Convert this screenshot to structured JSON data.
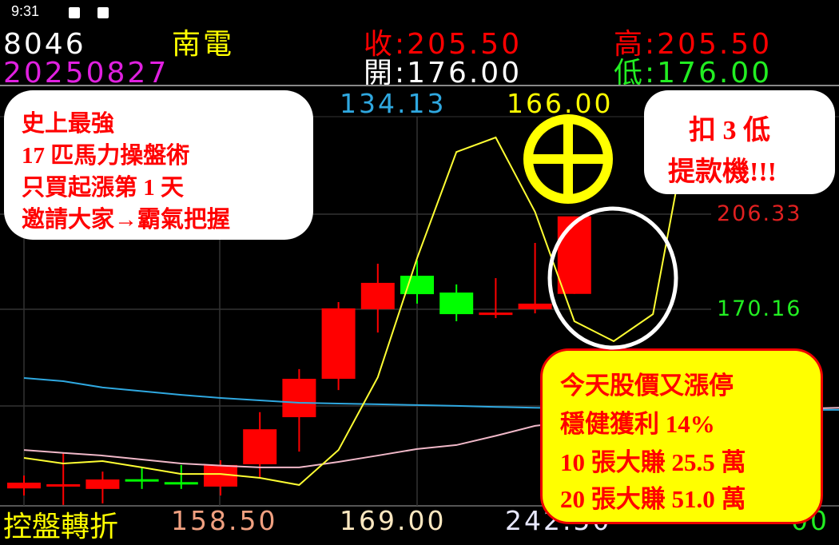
{
  "status_bar": {
    "time": "9:31",
    "icons": [
      "image-icon",
      "a-text-icon"
    ]
  },
  "header": {
    "code": "8046",
    "name": "南電",
    "date": "20250827",
    "close": "收:205.50",
    "high": "高:205.50",
    "open": "開:176.00",
    "low": "低:176.00"
  },
  "indicator_row": {
    "blue_value": "134.13",
    "yellow_value": "166.00"
  },
  "bottom_row": {
    "label": "控盤轉折",
    "v1": "158.50",
    "v2": "169.00",
    "v3": "242.50",
    "v4": "00"
  },
  "price_labels": {
    "upper": "206.33",
    "lower": "170.16"
  },
  "annotations": {
    "left_bubble": [
      "史上最強",
      "17 匹馬力操盤術",
      "只買起漲第 1 天",
      "邀請大家→霸氣把握"
    ],
    "right_bubble": [
      "扣 3 低",
      "提款機!!!"
    ],
    "yellow_box": [
      "今天股價又漲停",
      "穩健獲利 14%",
      "10 張大賺 25.5 萬",
      "20 張大賺 51.0 萬"
    ],
    "symbols": [
      "yellow-circle-cross-icon",
      "white-ellipse-highlight"
    ]
  },
  "colors": {
    "up": "#ff0000",
    "down": "#00ff00",
    "ma_blue": "#2fa8e0",
    "ma_pink": "#f0b8c8",
    "line_yellow": "#ffff33",
    "text_yellow": "#ffff00",
    "text_magenta": "#e020e0"
  },
  "chart_data": {
    "type": "candlestick",
    "ylim_labels": [
      170.16,
      206.33
    ],
    "grid": true,
    "candles": [
      {
        "o": 102.0,
        "h": 106.9,
        "l": 99.3,
        "c": 104.2
      },
      {
        "o": 103.0,
        "h": 115.4,
        "l": 95.7,
        "c": 103.6
      },
      {
        "o": 101.8,
        "h": 108.4,
        "l": 96.3,
        "c": 105.4
      },
      {
        "o": 105.5,
        "h": 109.9,
        "l": 101.8,
        "c": 105.2
      },
      {
        "o": 104.4,
        "h": 110.9,
        "l": 101.8,
        "c": 104.1
      },
      {
        "o": 102.7,
        "h": 112.7,
        "l": 99.3,
        "c": 110.9
      },
      {
        "o": 111.2,
        "h": 131.0,
        "l": 106.0,
        "c": 124.5
      },
      {
        "o": 129.1,
        "h": 147.4,
        "l": 116.0,
        "c": 143.7
      },
      {
        "o": 143.7,
        "h": 172.9,
        "l": 139.4,
        "c": 170.5
      },
      {
        "o": 170.2,
        "h": 187.5,
        "l": 161.3,
        "c": 180.2
      },
      {
        "o": 182.9,
        "h": 188.7,
        "l": 172.3,
        "c": 175.9
      },
      {
        "o": 176.5,
        "h": 179.6,
        "l": 165.6,
        "c": 168.3
      },
      {
        "o": 168.0,
        "h": 182.0,
        "l": 166.8,
        "c": 168.9
      },
      {
        "o": 170.2,
        "h": 195.4,
        "l": 168.6,
        "c": 172.3
      },
      {
        "o": 176.0,
        "h": 205.5,
        "l": 176.0,
        "c": 205.5
      }
    ],
    "lines": [
      {
        "color": "#2fa8e0",
        "values": [
          144.0,
          142.8,
          140.4,
          139.0,
          137.6,
          136.4,
          135.5,
          134.6,
          134.3,
          134.0,
          133.7,
          133.4,
          133.0,
          132.7,
          132.5,
          132.3,
          132.2,
          132.1,
          132.0,
          132.0,
          131.9,
          131.9
        ]
      },
      {
        "color": "#f0b8c8",
        "values": [
          116.6,
          115.5,
          114.5,
          113.0,
          111.5,
          110.7,
          110.0,
          110.0,
          112.1,
          114.5,
          117.0,
          118.5,
          122.0,
          125.8,
          127.5,
          129.0,
          130.2,
          131.0,
          131.5,
          132.0,
          132.4,
          132.8
        ]
      },
      {
        "color": "#ffff33",
        "values": [
          113.6,
          111.5,
          112.4,
          110.0,
          107.5,
          107.5,
          106.0,
          103.3,
          116.6,
          144.3,
          189.6,
          230.0,
          235.5,
          207.2,
          165.6,
          158.0,
          168.3,
          248.3
        ]
      }
    ]
  }
}
